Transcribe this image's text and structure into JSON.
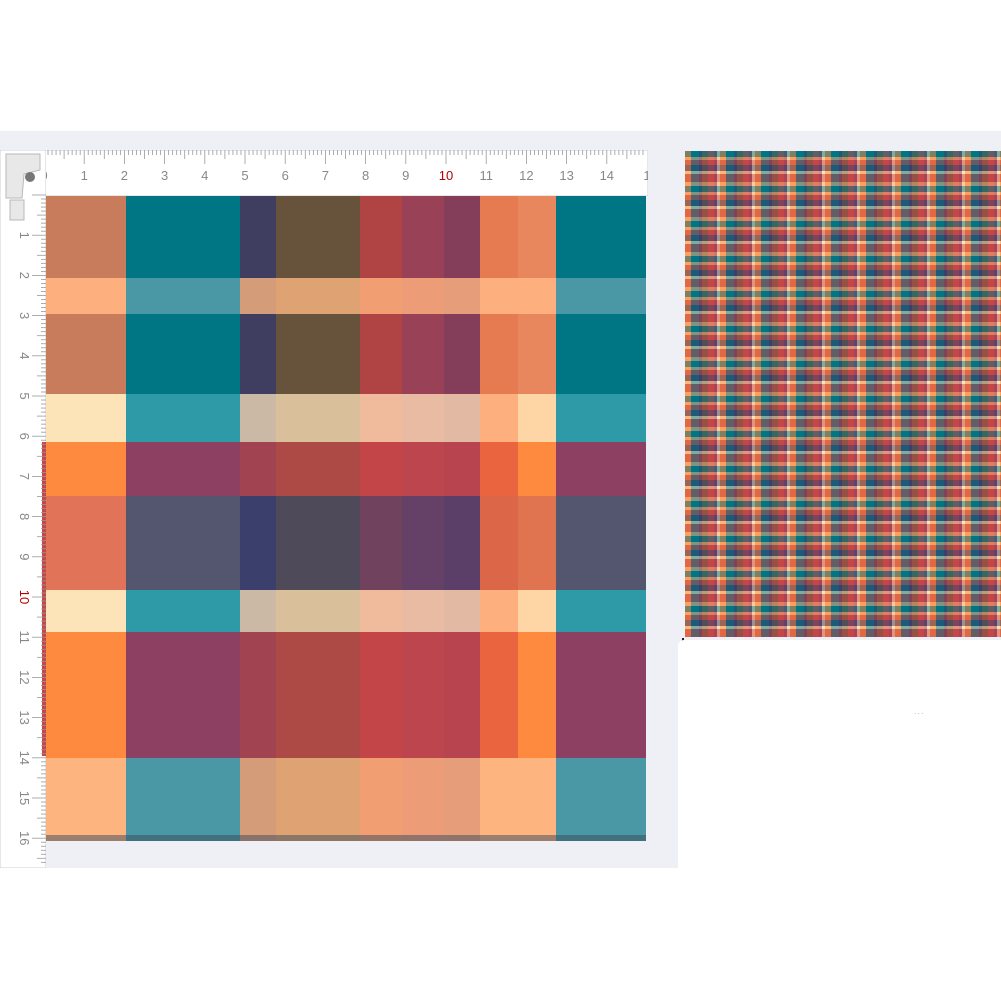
{
  "ruler": {
    "horizontal_labels": [
      "0",
      "1",
      "2",
      "3",
      "4",
      "5",
      "6",
      "7",
      "8",
      "9",
      "10",
      "11",
      "12",
      "13",
      "14",
      "1"
    ],
    "vertical_labels": [
      "1",
      "2",
      "3",
      "4",
      "5",
      "6",
      "7",
      "8",
      "9",
      "10",
      "11",
      "12",
      "13",
      "14",
      "15",
      "16"
    ],
    "highlight_label": "10",
    "highlight_color": "#b40000"
  },
  "plaid": {
    "colors": {
      "teal": "#007584",
      "orange": "#fd8a3e",
      "peach": "#fdb47e",
      "cream": "#fee3b8",
      "red": "#c44648",
      "plum": "#8e4063",
      "navy": "#3a3f6c"
    }
  },
  "swatch_caption": "..."
}
